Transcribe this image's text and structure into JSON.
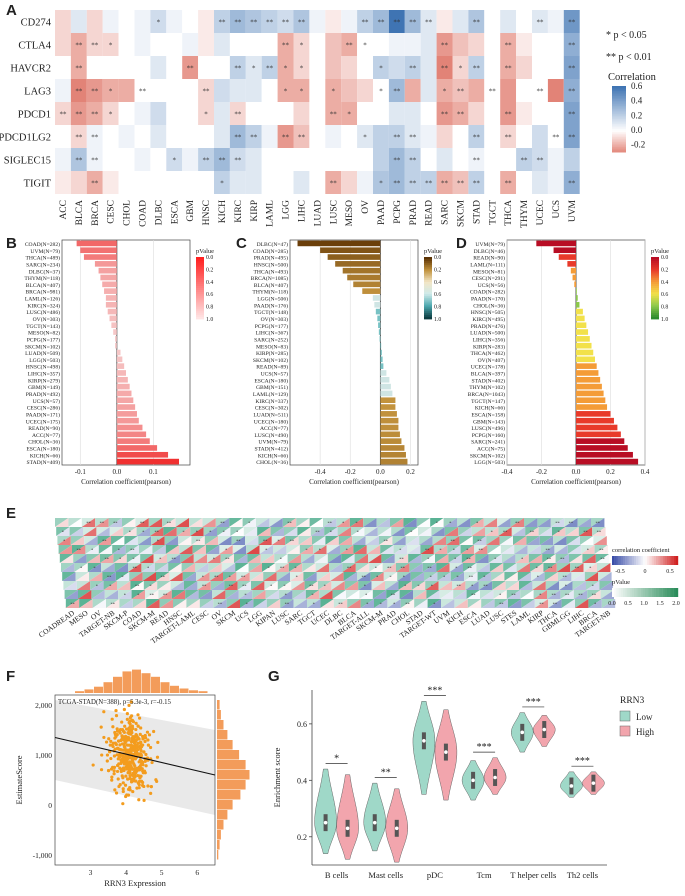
{
  "panels": {
    "a": "A",
    "b": "B",
    "c": "C",
    "d": "D",
    "e": "E",
    "f": "F",
    "g": "G"
  },
  "panel_a": {
    "legend": {
      "sig1": "* p < 0.05",
      "sig2": "** p < 0.01",
      "title": "Correlation",
      "ticks": [
        "0.6",
        "0.4",
        "0.2",
        "0.0",
        "-0.2"
      ]
    },
    "colors": {
      "pos": "#4a7ab5",
      "neg": "#e8857a"
    }
  },
  "panel_b": {
    "legend_title": "pValue",
    "legend_ticks": [
      "0.0",
      "0.2",
      "0.4",
      "0.6",
      "0.8",
      "1.0"
    ]
  },
  "panel_c": {
    "legend_title": "pValue",
    "legend_ticks": [
      "0.0",
      "0.2",
      "0.4",
      "0.6",
      "0.8",
      "1.0"
    ]
  },
  "panel_d": {
    "legend_title": "pValue",
    "legend_ticks": [
      "0.0",
      "0.2",
      "0.4",
      "0.6",
      "0.8",
      "1.0"
    ]
  },
  "panel_e": {
    "legend1_title": "correlation coefficient",
    "legend1_ticks": [
      "-0.5",
      "0",
      "0.5"
    ],
    "legend2_title": "pValue",
    "legend2_ticks": [
      "0.0",
      "0.5",
      "1.0",
      "1.5",
      "2.0"
    ]
  },
  "panel_f": {
    "inset": "TCGA-STAD(N=388), p=5.3e-3, r=-0.15"
  },
  "panel_g": {
    "legend_title": "RRN3",
    "legend": [
      "Low",
      "High"
    ]
  },
  "chart_data": [
    {
      "type": "heatmap",
      "panel": "A",
      "rows": [
        "CD274",
        "CTLA4",
        "HAVCR2",
        "LAG3",
        "PDCD1",
        "PDCD1LG2",
        "SIGLEC15",
        "TIGIT"
      ],
      "columns": [
        "ACC",
        "BLCA",
        "BRCA",
        "CESC",
        "CHOL",
        "COAD",
        "DLBC",
        "ESCA",
        "GBM",
        "HNSC",
        "KICH",
        "KIRC",
        "KIRP",
        "LAML",
        "LGG",
        "LIHC",
        "LUAD",
        "LUSC",
        "MESO",
        "OV",
        "PAAD",
        "PCPG",
        "PRAD",
        "READ",
        "SARC",
        "SKCM",
        "STAD",
        "TGCT",
        "THCA",
        "THYM",
        "UCEC",
        "UCS",
        "UVM"
      ],
      "values": [
        [
          -0.1,
          0.1,
          -0.1,
          0.05,
          0,
          0.05,
          0.15,
          0.05,
          0,
          -0.05,
          0.2,
          0.3,
          0.25,
          0.2,
          0.15,
          0.25,
          0.05,
          -0.05,
          0.05,
          0.2,
          0.3,
          0.6,
          0.3,
          0.1,
          -0.05,
          0.1,
          0.25,
          0,
          0.1,
          0,
          0.1,
          0.05,
          0.45
        ],
        [
          -0.1,
          -0.2,
          -0.1,
          -0.1,
          0,
          0.05,
          0,
          0,
          0.05,
          -0.05,
          0.1,
          0,
          0,
          0,
          -0.2,
          -0.1,
          0,
          -0.15,
          -0.2,
          0,
          0,
          0.05,
          0.05,
          0.1,
          -0.25,
          -0.15,
          -0.1,
          0,
          -0.2,
          -0.05,
          0,
          0,
          0.35
        ],
        [
          0,
          -0.2,
          0,
          0,
          0,
          0,
          0.1,
          0,
          -0.25,
          0,
          0,
          0.2,
          0.1,
          0.2,
          -0.2,
          -0.1,
          0,
          -0.15,
          -0.1,
          0,
          0.2,
          0.15,
          0.2,
          0.1,
          -0.3,
          -0.1,
          0.2,
          0,
          -0.2,
          -0.1,
          0,
          0,
          0.4
        ],
        [
          0.05,
          -0.3,
          -0.25,
          -0.2,
          -0.2,
          0,
          0,
          0,
          0,
          -0.1,
          0.15,
          0.1,
          0.1,
          0,
          -0.2,
          -0.2,
          0,
          -0.2,
          -0.15,
          -0.1,
          0,
          0.3,
          -0.2,
          0.1,
          -0.2,
          -0.15,
          -0.2,
          0,
          -0.25,
          0,
          0,
          -0.3,
          0.35
        ],
        [
          -0.1,
          -0.25,
          -0.2,
          -0.1,
          0,
          0.05,
          0.15,
          0,
          0,
          -0.1,
          0.1,
          -0.1,
          0,
          0,
          0,
          -0.1,
          0,
          -0.2,
          -0.2,
          0,
          0,
          0.1,
          0.1,
          0,
          -0.25,
          -0.2,
          -0.1,
          0,
          -0.25,
          -0.05,
          0,
          0,
          0.4
        ],
        [
          0,
          -0.1,
          0.05,
          0,
          0.05,
          0,
          0.1,
          0,
          0,
          0,
          0.1,
          0.3,
          0.2,
          0.05,
          -0.25,
          -0.15,
          0,
          0.05,
          0,
          0.1,
          0.2,
          0.2,
          0.1,
          0.05,
          -0.1,
          0,
          0.2,
          0,
          -0.1,
          0,
          0.15,
          0,
          0.4
        ],
        [
          0.05,
          0.25,
          0.05,
          0,
          0,
          0.05,
          0,
          0.15,
          0.05,
          0.2,
          0.3,
          0.15,
          0.1,
          0,
          0,
          0,
          0,
          0,
          0,
          0,
          0.2,
          0.3,
          0.2,
          0,
          0.1,
          0,
          0.05,
          0,
          0,
          0.2,
          0.15,
          0.05,
          0.2
        ],
        [
          -0.05,
          -0.1,
          -0.2,
          -0.05,
          0,
          0,
          0,
          0,
          0,
          0,
          0.2,
          0.1,
          0.1,
          0,
          0,
          0.1,
          0,
          -0.2,
          -0.1,
          0.05,
          0.25,
          0.3,
          0.2,
          0.2,
          -0.2,
          -0.15,
          0.2,
          0,
          -0.2,
          0,
          0.1,
          0.05,
          0.35
        ]
      ],
      "significance": [
        [
          "",
          "",
          "",
          "",
          "",
          "",
          "*",
          "",
          "",
          "",
          "**",
          "**",
          "**",
          "**",
          "**",
          "**",
          "",
          "",
          "",
          "**",
          "**",
          "**",
          "**",
          "**",
          "",
          "",
          "**",
          "",
          "",
          "",
          "**",
          "",
          "**"
        ],
        [
          "",
          "**",
          "**",
          "*",
          "",
          "",
          "",
          "",
          "",
          "",
          "",
          "",
          "",
          "",
          "**",
          "*",
          "",
          "",
          "**",
          "*",
          "",
          "",
          "",
          "",
          "**",
          "",
          "",
          "",
          "**",
          "",
          "",
          "",
          "**"
        ],
        [
          "",
          "**",
          "",
          "",
          "",
          "",
          "",
          "",
          "**",
          "",
          "",
          "**",
          "*",
          "**",
          "*",
          "*",
          "",
          "",
          "",
          "",
          "*",
          "",
          "**",
          "",
          "**",
          "*",
          "**",
          "",
          "**",
          "",
          "",
          "",
          "**"
        ],
        [
          "",
          "**",
          "**",
          "*",
          "",
          "**",
          "",
          "",
          "",
          "**",
          "",
          "",
          "",
          "",
          "*",
          "*",
          "",
          "*",
          "",
          "",
          "*",
          "**",
          "",
          "",
          "*",
          "**",
          "",
          "**",
          "",
          "",
          "**",
          "",
          "**"
        ],
        [
          "**",
          "**",
          "**",
          "*",
          "",
          "",
          "",
          "",
          "",
          "*",
          "",
          "**",
          "",
          "",
          "",
          "",
          "",
          "**",
          "*",
          "",
          "",
          "",
          "",
          "",
          "**",
          "**",
          "",
          "",
          "**",
          "",
          "",
          "",
          "**"
        ],
        [
          "",
          "**",
          "**",
          "",
          "",
          "",
          "",
          "",
          "",
          "",
          "",
          "**",
          "**",
          "",
          "**",
          "**",
          "",
          "",
          "",
          "*",
          "",
          "**",
          "**",
          "",
          "",
          "",
          "**",
          "",
          "**",
          "",
          "",
          "**",
          "**"
        ],
        [
          "",
          "**",
          "**",
          "",
          "",
          "",
          "",
          "*",
          "",
          "**",
          "**",
          "**",
          "",
          "",
          "",
          "",
          "",
          "",
          "",
          "",
          "",
          "**",
          "**",
          "",
          "",
          "",
          "**",
          "",
          "",
          "**",
          "**",
          "",
          ""
        ],
        [
          "",
          "",
          "**",
          "",
          "",
          "",
          "",
          "",
          "",
          "",
          "*",
          "",
          "",
          "",
          "",
          "",
          "",
          "**",
          "",
          "",
          "*",
          "**",
          "**",
          "**",
          "**",
          "**",
          "**",
          "",
          "**",
          "",
          "",
          "",
          "**"
        ]
      ],
      "legend_ticks": [
        0.6,
        0.4,
        0.2,
        0.0,
        -0.2
      ]
    },
    {
      "type": "bar",
      "orientation": "horizontal",
      "panel": "B",
      "categories": [
        "COAD(N=282)",
        "UVM(N=79)",
        "THCA(N=489)",
        "SARC(N=234)",
        "DLBC(N=37)",
        "THYM(N=118)",
        "BLCA(N=407)",
        "BRCA(N=981)",
        "LAML(N=126)",
        "KIRC(N=324)",
        "LUSC(N=486)",
        "OV(N=303)",
        "TGCT(N=143)",
        "MESO(N=82)",
        "PCPG(N=177)",
        "SKCM(N=102)",
        "LUAD(N=509)",
        "LGG(N=503)",
        "HNSC(N=498)",
        "LIHC(N=357)",
        "KIRP(N=279)",
        "GBM(N=149)",
        "PRAD(N=492)",
        "UCS(N=57)",
        "CESC(N=286)",
        "PAAD(N=171)",
        "UCEC(N=175)",
        "READ(N=90)",
        "ACC(N=77)",
        "CHOL(N=36)",
        "ESCA(N=180)",
        "KICH(N=66)",
        "STAD(N=409)"
      ],
      "values": [
        -0.11,
        -0.1,
        -0.09,
        -0.06,
        -0.05,
        -0.045,
        -0.04,
        -0.035,
        -0.03,
        -0.03,
        -0.025,
        -0.02,
        -0.015,
        -0.01,
        -0.005,
        -0.005,
        0.01,
        0.015,
        0.02,
        0.025,
        0.03,
        0.035,
        0.04,
        0.045,
        0.05,
        0.055,
        0.06,
        0.07,
        0.08,
        0.09,
        0.11,
        0.14,
        0.17
      ],
      "xlabel": "Correlation coefficient(pearson)",
      "xlim": [
        -0.15,
        0.2
      ],
      "xticks": [
        -0.1,
        0.0,
        0.1
      ],
      "color_scale": "pValue"
    },
    {
      "type": "bar",
      "orientation": "horizontal",
      "panel": "C",
      "categories": [
        "DLBC(N=47)",
        "COAD(N=285)",
        "PRAD(N=495)",
        "HNSC(N=500)",
        "THCA(N=493)",
        "BRCA(N=1085)",
        "BLCA(N=407)",
        "THYM(N=118)",
        "LGG(N=506)",
        "PAAD(N=176)",
        "TGCT(N=148)",
        "OV(N=303)",
        "PCPG(N=177)",
        "LIHC(N=367)",
        "SARC(N=252)",
        "MESO(N=83)",
        "KIRP(N=285)",
        "SKCM(N=102)",
        "READ(N=89)",
        "UCS(N=57)",
        "ESCA(N=180)",
        "GBM(N=151)",
        "LAML(N=129)",
        "KIRC(N=337)",
        "CESC(N=302)",
        "LUAD(N=511)",
        "UCEC(N=180)",
        "ACC(N=77)",
        "LUSC(N=490)",
        "UVM(N=79)",
        "STAD(N=412)",
        "KICH(N=66)",
        "CHOL(N=36)"
      ],
      "values": [
        -0.55,
        -0.4,
        -0.35,
        -0.3,
        -0.25,
        -0.22,
        -0.18,
        -0.12,
        -0.05,
        -0.04,
        -0.03,
        -0.02,
        -0.015,
        -0.01,
        -0.005,
        0.005,
        0.01,
        0.015,
        0.02,
        0.04,
        0.06,
        0.07,
        0.08,
        0.1,
        0.1,
        0.11,
        0.12,
        0.12,
        0.13,
        0.14,
        0.16,
        0.17,
        0.18
      ],
      "xlabel": "Correlation coefficient(pearson)",
      "xlim": [
        -0.6,
        0.25
      ],
      "xticks": [
        -0.4,
        -0.2,
        0.0,
        0.2
      ],
      "color_scale": "pValue"
    },
    {
      "type": "bar",
      "orientation": "horizontal",
      "panel": "D",
      "categories": [
        "UVM(N=79)",
        "DLBC(N=46)",
        "READ(N=90)",
        "LAML(N=111)",
        "MESO(N=81)",
        "CESC(N=291)",
        "UCS(N=56)",
        "COAD(N=282)",
        "PAAD(N=170)",
        "CHOL(N=36)",
        "HNSC(N=505)",
        "KIRC(N=495)",
        "PRAD(N=476)",
        "LUAD(N=500)",
        "LIHC(N=356)",
        "KIRP(N=283)",
        "THCA(N=462)",
        "OV(N=407)",
        "UCEC(N=178)",
        "BLCA(N=397)",
        "STAD(N=402)",
        "THYM(N=102)",
        "BRCA(N=1043)",
        "TGCT(N=147)",
        "KICH(N=66)",
        "ESCA(N=158)",
        "GBM(N=143)",
        "LUSC(N=496)",
        "PCPG(N=160)",
        "SARC(N=241)",
        "ACC(N=75)",
        "SKCM(N=102)",
        "LGG(N=503)"
      ],
      "values": [
        -0.23,
        -0.13,
        -0.1,
        -0.05,
        -0.03,
        -0.02,
        -0.01,
        0.0,
        0.01,
        0.02,
        0.04,
        0.05,
        0.06,
        0.07,
        0.08,
        0.09,
        0.1,
        0.11,
        0.12,
        0.13,
        0.14,
        0.15,
        0.16,
        0.17,
        0.18,
        0.2,
        0.22,
        0.24,
        0.26,
        0.28,
        0.3,
        0.33,
        0.36
      ],
      "xlabel": "Correlation coefficient(pearson)",
      "xlim": [
        -0.4,
        0.4
      ],
      "xticks": [
        -0.4,
        -0.2,
        0.0,
        0.2,
        0.4
      ],
      "color_scale": "pValue"
    },
    {
      "type": "heatmap",
      "panel": "E",
      "columns": [
        "COADREAD",
        "MESO",
        "OV",
        "TARGET-NB",
        "SKCM-P",
        "COAD",
        "SKCM-M",
        "READ",
        "HNSC",
        "TARGET-LAML",
        "CESC",
        "OV",
        "SKCM",
        "UCS",
        "LGG",
        "KIPAN",
        "LUSC",
        "SARC",
        "TGCT",
        "UCEC",
        "DLBC",
        "BLCA",
        "TARGET-ALL",
        "SKCM-M",
        "PRAD",
        "CHOL",
        "STAD",
        "TARGET-WT",
        "UVM",
        "KICH",
        "ESCA",
        "LUAD",
        "LUSC",
        "STES",
        "LAML",
        "KIRP",
        "THCA",
        "GBMLGG",
        "LIHC",
        "BRCA",
        "TARGET-NB"
      ],
      "rows": 10,
      "legend_range": [
        -0.5,
        0.5
      ]
    },
    {
      "type": "scatter",
      "panel": "F",
      "xlabel": "RRN3 Expression",
      "ylabel": "EstimateScore",
      "xlim": [
        2,
        6.5
      ],
      "ylim": [
        -1200,
        2200
      ],
      "xticks": [
        3,
        4,
        5,
        6
      ],
      "yticks": [
        -1000,
        0,
        1000,
        2000
      ],
      "regression": {
        "x": [
          2,
          6.5
        ],
        "y": [
          1350,
          600
        ]
      },
      "n": 388,
      "p": "5.3e-3",
      "r": -0.15
    },
    {
      "type": "violin",
      "panel": "G",
      "categories": [
        "B cells",
        "Mast cells",
        "pDC",
        "Tcm",
        "T helper cells",
        "Th2 cells"
      ],
      "series": [
        {
          "name": "Low",
          "medians": [
            0.25,
            0.25,
            0.54,
            0.4,
            0.57,
            0.38
          ],
          "mins": [
            0.14,
            0.15,
            0.35,
            0.33,
            0.5,
            0.34
          ],
          "maxs": [
            0.44,
            0.39,
            0.68,
            0.47,
            0.64,
            0.43
          ]
        },
        {
          "name": "High",
          "medians": [
            0.23,
            0.23,
            0.5,
            0.41,
            0.58,
            0.39
          ],
          "mins": [
            0.12,
            0.11,
            0.33,
            0.35,
            0.52,
            0.35
          ],
          "maxs": [
            0.42,
            0.37,
            0.65,
            0.48,
            0.63,
            0.43
          ]
        }
      ],
      "significance": [
        "*",
        "**",
        "***",
        "***",
        "***",
        "***"
      ],
      "ylabel": "Enrichment score",
      "ylim": [
        0.1,
        0.72
      ],
      "yticks": [
        0.2,
        0.4,
        0.6
      ]
    }
  ]
}
